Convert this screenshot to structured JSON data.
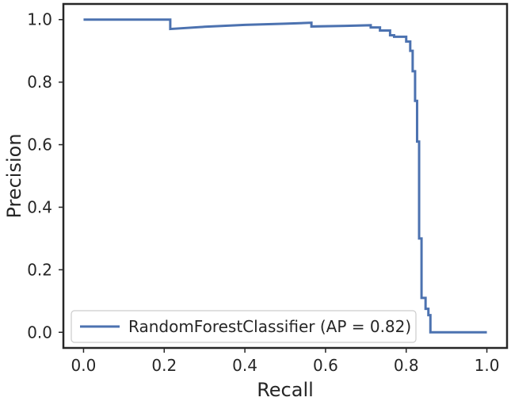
{
  "chart_data": {
    "type": "line",
    "xlabel": "Recall",
    "ylabel": "Precision",
    "xlim": [
      -0.05,
      1.05
    ],
    "ylim": [
      -0.05,
      1.05
    ],
    "xticks": [
      0.0,
      0.2,
      0.4,
      0.6,
      0.8,
      1.0
    ],
    "xtick_labels": [
      "0.0",
      "0.2",
      "0.4",
      "0.6",
      "0.8",
      "1.0"
    ],
    "yticks": [
      0.0,
      0.2,
      0.4,
      0.6,
      0.8,
      1.0
    ],
    "ytick_labels": [
      "0.0",
      "0.2",
      "0.4",
      "0.6",
      "0.8",
      "1.0"
    ],
    "grid": false,
    "legend_placement": "lower-left",
    "series": [
      {
        "name": "RandomForestClassifier (AP = 0.82)",
        "color": "#4c72b0",
        "step": "post",
        "x": [
          0.0,
          0.215,
          0.215,
          0.3,
          0.4,
          0.5,
          0.565,
          0.565,
          0.65,
          0.712,
          0.712,
          0.735,
          0.735,
          0.76,
          0.76,
          0.77,
          0.77,
          0.8,
          0.8,
          0.81,
          0.81,
          0.816,
          0.816,
          0.822,
          0.822,
          0.827,
          0.827,
          0.832,
          0.832,
          0.838,
          0.838,
          0.848,
          0.848,
          0.855,
          0.855,
          0.86,
          0.86,
          0.868,
          0.868,
          1.0
        ],
        "y": [
          1.0,
          1.0,
          0.97,
          0.977,
          0.983,
          0.987,
          0.99,
          0.978,
          0.98,
          0.982,
          0.975,
          0.975,
          0.965,
          0.965,
          0.95,
          0.95,
          0.945,
          0.945,
          0.93,
          0.93,
          0.9,
          0.9,
          0.835,
          0.835,
          0.74,
          0.74,
          0.61,
          0.61,
          0.3,
          0.3,
          0.11,
          0.11,
          0.075,
          0.075,
          0.055,
          0.055,
          0.0,
          0.0,
          0.0,
          0.0
        ]
      }
    ]
  }
}
